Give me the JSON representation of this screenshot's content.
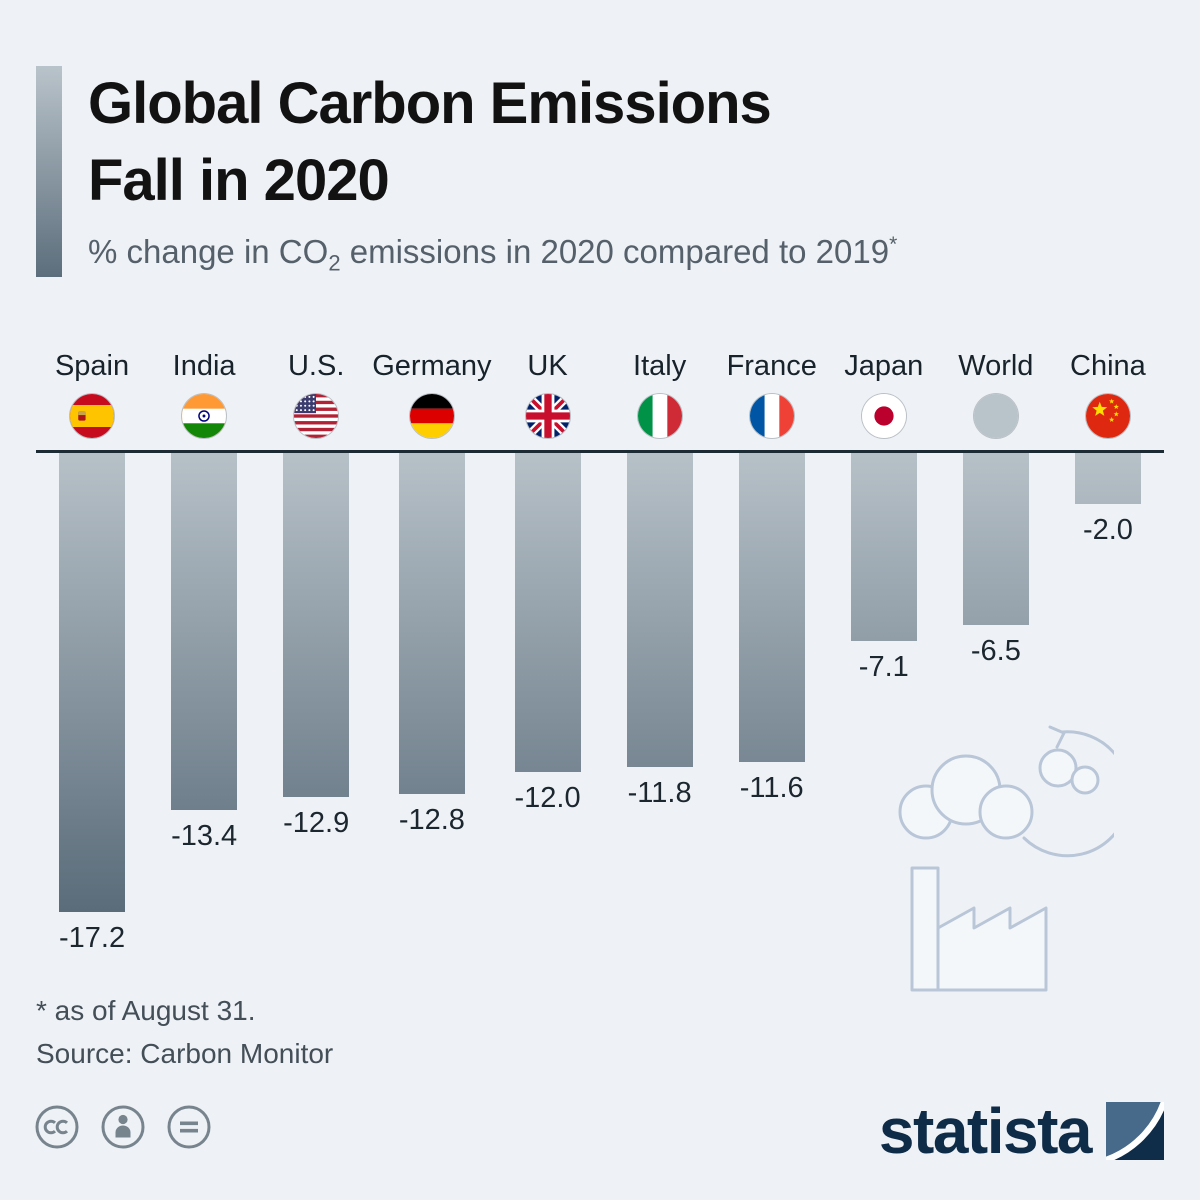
{
  "colors": {
    "background": "#eef2f6",
    "title_text": "#121212",
    "subtitle_text": "#55606a",
    "bar_gradient_top": "#b7c1c8",
    "bar_gradient_bottom": "#5a6c7a",
    "baseline": "#1d2b35",
    "value_label_text": "#1c262e",
    "footnote_text": "#434e57",
    "brand_navy": "#0e2b47",
    "illustration_stroke": "#b9c6d8"
  },
  "header": {
    "title_line1": "Global Carbon Emissions",
    "title_line2": "Fall in 2020",
    "subtitle": {
      "prefix": "% change in CO",
      "subscript": "2",
      "middle": " emissions in 2020 compared to 2019",
      "superscript": "*"
    }
  },
  "chart_data": {
    "type": "bar",
    "orientation": "vertical-downward",
    "categories": [
      "Spain",
      "India",
      "U.S.",
      "Germany",
      "UK",
      "Italy",
      "France",
      "Japan",
      "World",
      "China"
    ],
    "values": [
      -17.2,
      -13.4,
      -12.9,
      -12.8,
      -12.0,
      -11.8,
      -11.6,
      -7.1,
      -6.5,
      -2.0
    ],
    "flag_icons": [
      "flag-spain-icon",
      "flag-india-icon",
      "flag-us-icon",
      "flag-germany-icon",
      "flag-uk-icon",
      "flag-italy-icon",
      "flag-france-icon",
      "flag-japan-icon",
      "globe-world-icon",
      "flag-china-icon"
    ],
    "title": "Global Carbon Emissions Fall in 2020",
    "xlabel": "",
    "ylabel": "% change in CO2 emissions in 2020 compared to 2019",
    "ylim": [
      -18,
      0
    ],
    "grid": false,
    "legend": false,
    "value_label_format": "one-decimal"
  },
  "footnotes": {
    "note": "* as of August 31.",
    "source": "Source: Carbon Monitor"
  },
  "footer": {
    "license_icons": [
      "creative-commons-icon",
      "attribution-icon",
      "no-derivatives-icon"
    ],
    "brand": "statista"
  }
}
